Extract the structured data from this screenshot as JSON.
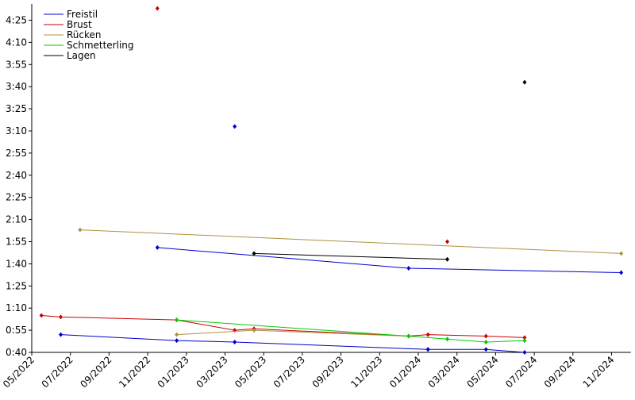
{
  "chart_data": {
    "type": "line",
    "xlim": [
      "2022-05",
      "2024-12"
    ],
    "xticks": [
      {
        "value": "2022-05",
        "label": "05/2022"
      },
      {
        "value": "2022-07",
        "label": "07/2022"
      },
      {
        "value": "2022-09",
        "label": "09/2022"
      },
      {
        "value": "2022-11",
        "label": "11/2022"
      },
      {
        "value": "2023-01",
        "label": "01/2023"
      },
      {
        "value": "2023-03",
        "label": "03/2023"
      },
      {
        "value": "2023-05",
        "label": "05/2023"
      },
      {
        "value": "2023-07",
        "label": "07/2023"
      },
      {
        "value": "2023-09",
        "label": "09/2023"
      },
      {
        "value": "2023-11",
        "label": "11/2023"
      },
      {
        "value": "2024-01",
        "label": "01/2024"
      },
      {
        "value": "2024-03",
        "label": "03/2024"
      },
      {
        "value": "2024-05",
        "label": "05/2024"
      },
      {
        "value": "2024-07",
        "label": "07/2024"
      },
      {
        "value": "2024-09",
        "label": "09/2024"
      },
      {
        "value": "2024-11",
        "label": "11/2024"
      }
    ],
    "ylim": [
      40,
      276
    ],
    "yticks": [
      {
        "value": 40,
        "label": "0:40"
      },
      {
        "value": 55,
        "label": "0:55"
      },
      {
        "value": 70,
        "label": "1:10"
      },
      {
        "value": 85,
        "label": "1:25"
      },
      {
        "value": 100,
        "label": "1:40"
      },
      {
        "value": 115,
        "label": "1:55"
      },
      {
        "value": 130,
        "label": "2:10"
      },
      {
        "value": 145,
        "label": "2:25"
      },
      {
        "value": 160,
        "label": "2:40"
      },
      {
        "value": 175,
        "label": "2:55"
      },
      {
        "value": 190,
        "label": "3:10"
      },
      {
        "value": 205,
        "label": "3:25"
      },
      {
        "value": 220,
        "label": "3:40"
      },
      {
        "value": 235,
        "label": "3:55"
      },
      {
        "value": 250,
        "label": "4:10"
      },
      {
        "value": 265,
        "label": "4:25"
      }
    ],
    "grid": false,
    "legend": "upper-left",
    "series": [
      {
        "name": "Freistil",
        "color": "#0000cc",
        "x": [
          "2022-06",
          "2022-12",
          "2023-03",
          "2024-01",
          "2024-01",
          "2024-04",
          "2024-06",
          null,
          "2022-11",
          "2023-12",
          "2024-11",
          null,
          "2023-03"
        ],
        "values": [
          52,
          48,
          47,
          42,
          42,
          42,
          40,
          null,
          111,
          97,
          94,
          null,
          193
        ]
      },
      {
        "name": "Brust",
        "color": "#cc0000",
        "x": [
          "2022-05",
          "2022-06",
          "2022-12",
          "2023-03",
          "2023-04",
          "2023-12",
          "2024-01",
          "2024-04",
          "2024-06",
          null,
          "2022-11",
          null,
          "2024-02"
        ],
        "values": [
          65,
          64,
          62,
          55,
          56,
          51,
          52,
          51,
          50,
          null,
          273,
          null,
          115
        ]
      },
      {
        "name": "Rücken",
        "color": "#b09040",
        "x": [
          "2022-07",
          "2024-11",
          null,
          "2022-12",
          "2023-04",
          "2023-12"
        ],
        "values": [
          123,
          107,
          null,
          52,
          55,
          51
        ]
      },
      {
        "name": "Schmetterling",
        "color": "#00cc00",
        "x": [
          "2022-12",
          "2023-12",
          "2024-02",
          "2024-04",
          "2024-06"
        ],
        "values": [
          62,
          51,
          49,
          47,
          48
        ]
      },
      {
        "name": "Lagen",
        "color": "#000000",
        "x": [
          "2023-04",
          "2024-02",
          null,
          "2024-06"
        ],
        "values": [
          107,
          103,
          null,
          223
        ]
      }
    ]
  }
}
